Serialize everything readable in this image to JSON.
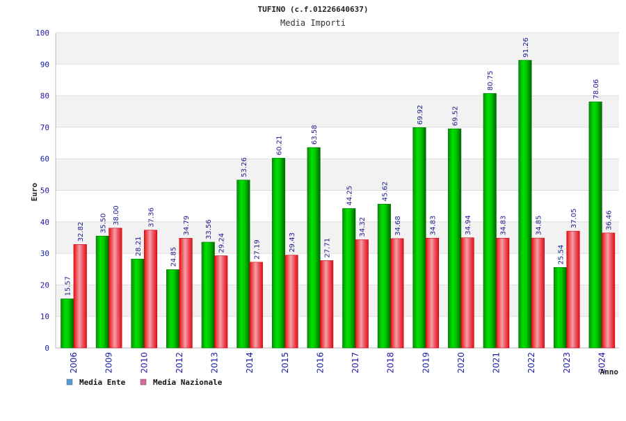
{
  "chart_data": {
    "type": "bar",
    "title": "TUFINO (c.f.01226640637)",
    "subtitle": "Media Importi",
    "xlabel": "Anno",
    "ylabel": "Euro",
    "ylim": [
      0,
      100
    ],
    "yticks": [
      0,
      10,
      20,
      30,
      40,
      50,
      60,
      70,
      80,
      90,
      100
    ],
    "categories": [
      "2006",
      "2009",
      "2010",
      "2012",
      "2013",
      "2014",
      "2015",
      "2016",
      "2017",
      "2018",
      "2019",
      "2020",
      "2021",
      "2022",
      "2023",
      "2024"
    ],
    "series": [
      {
        "name": "Media Ente",
        "color": "#00b000",
        "legend_color": "#5b9bd5",
        "values": [
          15.57,
          35.5,
          28.21,
          24.85,
          33.56,
          53.26,
          60.21,
          63.58,
          44.25,
          45.62,
          69.92,
          69.52,
          80.75,
          91.26,
          25.54,
          78.06
        ],
        "labels": [
          "15.57",
          "35.50",
          "28.21",
          "24.85",
          "33.56",
          "53.26",
          "60.21",
          "63.58",
          "44.25",
          "45.62",
          "69.92",
          "69.52",
          "80.75",
          "91.26",
          "25.54",
          "78.06"
        ]
      },
      {
        "name": "Media Nazionale",
        "color": "#e8141e",
        "legend_color": "#d36a9c",
        "values": [
          32.82,
          38.0,
          37.36,
          34.79,
          29.24,
          27.19,
          29.43,
          27.71,
          34.32,
          34.68,
          34.83,
          34.94,
          34.83,
          34.85,
          37.05,
          36.46
        ],
        "labels": [
          "32.82",
          "38.00",
          "37.36",
          "34.79",
          "29.24",
          "27.19",
          "29.43",
          "27.71",
          "34.32",
          "34.68",
          "34.83",
          "34.94",
          "34.83",
          "34.85",
          "37.05",
          "36.46"
        ]
      }
    ],
    "grid": true,
    "legend_position": "bottom-left"
  }
}
